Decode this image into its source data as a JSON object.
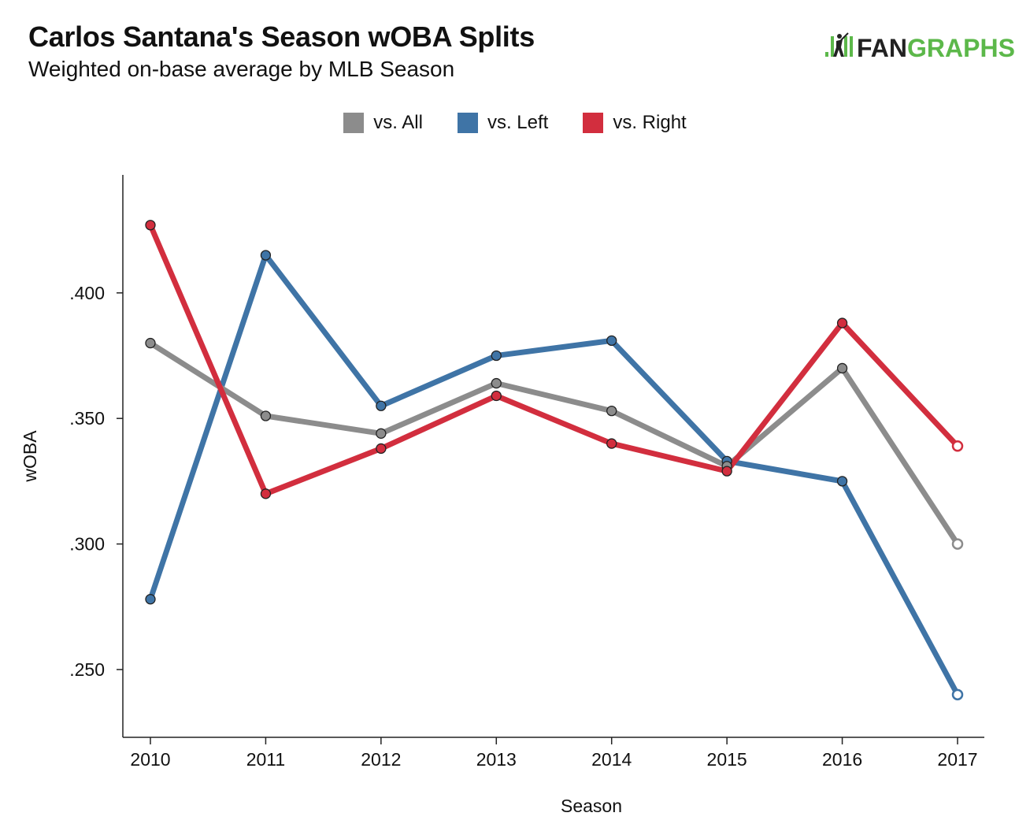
{
  "header": {
    "title": "Carlos Santana's Season wOBA Splits",
    "subtitle": "Weighted on-base average by MLB Season",
    "logo_text": "FANGRAPHS",
    "logo_text_dark": "FAN",
    "logo_text_green": "GRAPHS"
  },
  "colors": {
    "all": "#8c8c8c",
    "left": "#3f74a6",
    "right": "#d22e3e",
    "logo_green": "#5cb84a",
    "logo_dark": "#222222"
  },
  "chart_data": {
    "type": "line",
    "x": [
      "2010",
      "2011",
      "2012",
      "2013",
      "2014",
      "2015",
      "2016",
      "2017"
    ],
    "series": [
      {
        "name": "vs. All",
        "color": "#8c8c8c",
        "values": [
          0.38,
          0.351,
          0.344,
          0.364,
          0.353,
          0.331,
          0.37,
          0.3
        ]
      },
      {
        "name": "vs. Left",
        "color": "#3f74a6",
        "values": [
          0.278,
          0.415,
          0.355,
          0.375,
          0.381,
          0.333,
          0.325,
          0.24
        ]
      },
      {
        "name": "vs. Right",
        "color": "#d22e3e",
        "values": [
          0.427,
          0.32,
          0.338,
          0.359,
          0.34,
          0.329,
          0.388,
          0.339
        ]
      }
    ],
    "open_marker_categories": [
      "2017"
    ],
    "xlabel": "Season",
    "ylabel": "wOBA",
    "yticks": [
      0.25,
      0.3,
      0.35,
      0.4
    ],
    "ytick_labels": [
      ".250",
      ".300",
      ".350",
      ".400"
    ],
    "ylim": [
      0.223,
      0.447
    ],
    "grid": false,
    "legend_position": "top-center"
  }
}
